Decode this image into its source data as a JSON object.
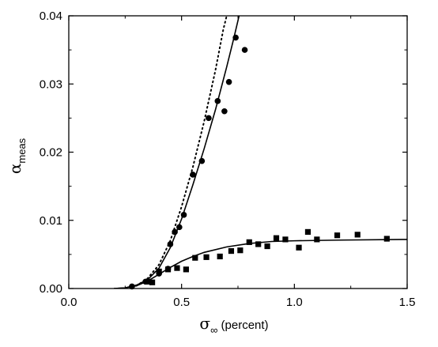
{
  "chart_data": {
    "type": "scatter",
    "x_axis": {
      "label_symbol": "σ",
      "label_subscript": "∞",
      "label_suffix": " (percent)",
      "range": [
        0.0,
        1.5
      ],
      "ticks": [
        0.0,
        0.5,
        1.0,
        1.5
      ],
      "tick_labels": [
        "0.0",
        "0.5",
        "1.0",
        "1.5"
      ]
    },
    "y_axis": {
      "label_symbol": "α",
      "label_subscript": "meas",
      "range": [
        0.0,
        0.04
      ],
      "ticks": [
        0.0,
        0.01,
        0.02,
        0.03,
        0.04
      ],
      "tick_labels": [
        "0.00",
        "0.01",
        "0.02",
        "0.03",
        "0.04"
      ]
    },
    "grid": false,
    "legend": "none",
    "series": [
      {
        "marker": "circle",
        "color": "#000000",
        "points": [
          [
            0.28,
            0.0003
          ],
          [
            0.34,
            0.001
          ],
          [
            0.4,
            0.0022
          ],
          [
            0.44,
            0.0029
          ],
          [
            0.45,
            0.0065
          ],
          [
            0.47,
            0.0083
          ],
          [
            0.49,
            0.009
          ],
          [
            0.51,
            0.0108
          ],
          [
            0.55,
            0.0167
          ],
          [
            0.59,
            0.0187
          ],
          [
            0.62,
            0.025
          ],
          [
            0.66,
            0.0275
          ],
          [
            0.69,
            0.026
          ],
          [
            0.71,
            0.0303
          ],
          [
            0.74,
            0.0368
          ],
          [
            0.78,
            0.035
          ]
        ]
      },
      {
        "marker": "square",
        "color": "#000000",
        "points": [
          [
            0.35,
            0.001
          ],
          [
            0.37,
            0.0009
          ],
          [
            0.4,
            0.0025
          ],
          [
            0.44,
            0.0028
          ],
          [
            0.48,
            0.003
          ],
          [
            0.52,
            0.0028
          ],
          [
            0.56,
            0.0045
          ],
          [
            0.61,
            0.0046
          ],
          [
            0.67,
            0.0047
          ],
          [
            0.72,
            0.0055
          ],
          [
            0.76,
            0.0056
          ],
          [
            0.8,
            0.0068
          ],
          [
            0.84,
            0.0065
          ],
          [
            0.88,
            0.0062
          ],
          [
            0.92,
            0.0074
          ],
          [
            0.96,
            0.0072
          ],
          [
            1.02,
            0.006
          ],
          [
            1.06,
            0.0083
          ],
          [
            1.1,
            0.0072
          ],
          [
            1.19,
            0.0078
          ],
          [
            1.28,
            0.0079
          ],
          [
            1.41,
            0.0073
          ]
        ]
      }
    ],
    "curves": [
      {
        "style": "solid",
        "color": "#000000",
        "points": [
          [
            0.2,
            0.0
          ],
          [
            0.25,
            0.0001
          ],
          [
            0.3,
            0.0005
          ],
          [
            0.35,
            0.0013
          ],
          [
            0.4,
            0.003
          ],
          [
            0.45,
            0.006
          ],
          [
            0.5,
            0.0102
          ],
          [
            0.55,
            0.0152
          ],
          [
            0.6,
            0.0205
          ],
          [
            0.65,
            0.0262
          ],
          [
            0.7,
            0.0325
          ],
          [
            0.73,
            0.0365
          ],
          [
            0.755,
            0.04
          ]
        ]
      },
      {
        "style": "dotted",
        "color": "#000000",
        "points": [
          [
            0.3,
            0.0004
          ],
          [
            0.35,
            0.0015
          ],
          [
            0.4,
            0.0035
          ],
          [
            0.45,
            0.007
          ],
          [
            0.5,
            0.012
          ],
          [
            0.55,
            0.0178
          ],
          [
            0.6,
            0.0245
          ],
          [
            0.65,
            0.032
          ],
          [
            0.685,
            0.038
          ],
          [
            0.7,
            0.04
          ]
        ]
      },
      {
        "style": "solid",
        "color": "#000000",
        "points": [
          [
            0.2,
            0.0
          ],
          [
            0.25,
            0.0001
          ],
          [
            0.3,
            0.0004
          ],
          [
            0.35,
            0.0011
          ],
          [
            0.4,
            0.0021
          ],
          [
            0.45,
            0.0031
          ],
          [
            0.5,
            0.004
          ],
          [
            0.55,
            0.0047
          ],
          [
            0.6,
            0.0053
          ],
          [
            0.7,
            0.0061
          ],
          [
            0.8,
            0.0066
          ],
          [
            0.9,
            0.0069
          ],
          [
            1.0,
            0.007
          ],
          [
            1.2,
            0.0071
          ],
          [
            1.5,
            0.0072
          ]
        ]
      }
    ]
  }
}
